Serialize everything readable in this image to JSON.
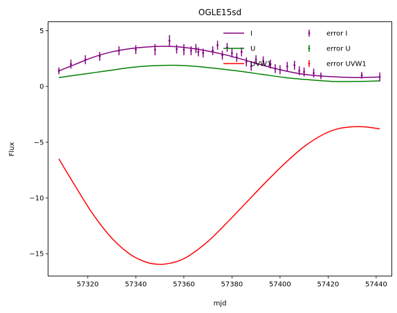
{
  "chart_data": {
    "type": "line",
    "title": "OGLE15sd",
    "xlabel": "mjd",
    "ylabel": "Flux",
    "xlim": [
      57303.5,
      57446.5
    ],
    "ylim": [
      -17,
      5.8
    ],
    "xticks": [
      57320,
      57340,
      57360,
      57380,
      57400,
      57420,
      57440
    ],
    "yticks": [
      -15,
      -10,
      -5,
      0,
      5
    ],
    "grid": false,
    "legend": "top-right",
    "series": [
      {
        "name": "I",
        "kind": "line",
        "color": "#800080",
        "x": [
          57308,
          57315,
          57322,
          57330,
          57338,
          57345,
          57353,
          57360,
          57368,
          57376,
          57384,
          57392,
          57400,
          57408,
          57416,
          57424,
          57432,
          57441.5
        ],
        "y": [
          1.4,
          2.0,
          2.6,
          3.1,
          3.4,
          3.55,
          3.6,
          3.5,
          3.25,
          2.9,
          2.45,
          1.95,
          1.5,
          1.15,
          0.95,
          0.85,
          0.8,
          0.85
        ]
      },
      {
        "name": "U",
        "kind": "line",
        "color": "#008000",
        "x": [
          57308,
          57318,
          57328,
          57338,
          57346,
          57354,
          57362,
          57372,
          57382,
          57392,
          57402,
          57412,
          57422,
          57432,
          57441.5
        ],
        "y": [
          0.8,
          1.1,
          1.4,
          1.7,
          1.85,
          1.9,
          1.85,
          1.65,
          1.4,
          1.1,
          0.8,
          0.6,
          0.45,
          0.45,
          0.5
        ]
      },
      {
        "name": "UVW1",
        "kind": "line",
        "color": "#ff0000",
        "x": [
          57308,
          57315,
          57322,
          57330,
          57338,
          57345,
          57350,
          57353,
          57357,
          57362,
          57370,
          57378,
          57386,
          57394,
          57402,
          57410,
          57418,
          57424,
          57430,
          57435,
          57441.5
        ],
        "y": [
          -6.5,
          -9.0,
          -11.4,
          -13.6,
          -15.1,
          -15.8,
          -15.95,
          -15.9,
          -15.7,
          -15.2,
          -13.9,
          -12.2,
          -10.4,
          -8.6,
          -6.9,
          -5.4,
          -4.3,
          -3.8,
          -3.62,
          -3.62,
          -3.8
        ]
      },
      {
        "name": "error I",
        "kind": "errorbar",
        "color": "#800080",
        "x": [
          57308,
          57313,
          57319,
          57325,
          57333,
          57340,
          57348,
          57354,
          57357,
          57360,
          57363,
          57365,
          57366,
          57368,
          57372,
          57374,
          57376,
          57378,
          57380,
          57382,
          57384,
          57386,
          57388,
          57390,
          57393,
          57396,
          57398,
          57400,
          57403,
          57406,
          57408,
          57410,
          57414,
          57417,
          57434,
          57441.5
        ],
        "y": [
          1.4,
          2.0,
          2.4,
          2.7,
          3.2,
          3.3,
          3.3,
          4.1,
          3.35,
          3.3,
          3.2,
          3.4,
          3.1,
          3.0,
          3.2,
          3.7,
          2.8,
          3.5,
          3.0,
          2.6,
          3.1,
          2.2,
          1.8,
          2.4,
          2.3,
          2.0,
          1.6,
          1.5,
          1.8,
          1.9,
          1.4,
          1.3,
          1.2,
          0.95,
          1.0,
          0.85
        ],
        "err": [
          0.3,
          0.4,
          0.4,
          0.4,
          0.4,
          0.4,
          0.5,
          0.5,
          0.4,
          0.5,
          0.4,
          0.4,
          0.4,
          0.4,
          0.4,
          0.4,
          0.4,
          0.4,
          0.4,
          0.4,
          0.4,
          0.4,
          0.4,
          0.4,
          0.4,
          0.4,
          0.4,
          0.4,
          0.4,
          0.4,
          0.4,
          0.4,
          0.4,
          0.3,
          0.3,
          0.4
        ]
      },
      {
        "name": "error U",
        "kind": "errorbar",
        "color": "#008000",
        "x": [],
        "y": [],
        "err": []
      },
      {
        "name": "error UVW1",
        "kind": "errorbar",
        "color": "#ff0000",
        "x": [],
        "y": [],
        "err": []
      }
    ]
  }
}
